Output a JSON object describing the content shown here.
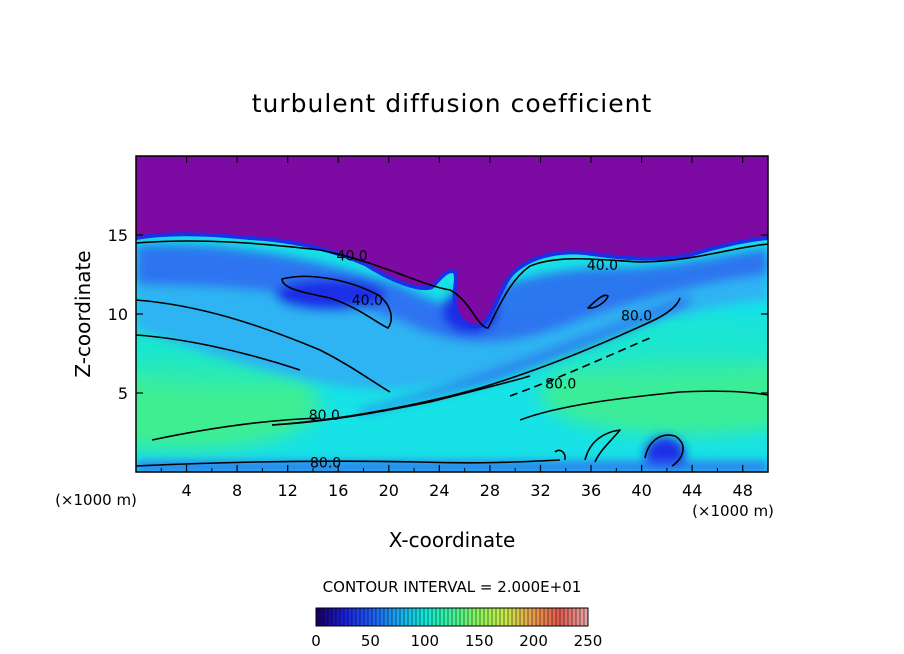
{
  "chart_data": {
    "type": "heatmap",
    "title": "turbulent diffusion coefficient",
    "xlabel": "X-coordinate",
    "ylabel": "Z-coordinate",
    "x_unit": "(×1000 m)",
    "z_unit": "(×1000 m)",
    "xlim": [
      0,
      50
    ],
    "ylim": [
      0,
      20
    ],
    "x_ticks": [
      4,
      8,
      12,
      16,
      20,
      24,
      28,
      32,
      36,
      40,
      44,
      48
    ],
    "y_ticks": [
      5,
      10,
      15
    ],
    "contour_interval_text": "CONTOUR INTERVAL = 2.000E+01",
    "contour_interval": 20,
    "contour_labels": [
      {
        "text": "40.0",
        "x": 17.1,
        "z": 13.7
      },
      {
        "text": "40.0",
        "x": 18.3,
        "z": 10.9
      },
      {
        "text": "40.0",
        "x": 36.9,
        "z": 13.1
      },
      {
        "text": "80.0",
        "x": 39.6,
        "z": 9.9
      },
      {
        "text": "80.0",
        "x": 33.6,
        "z": 5.6
      },
      {
        "text": "80.0",
        "x": 14.9,
        "z": 3.6
      },
      {
        "text": "80.0",
        "x": 15.0,
        "z": 0.6
      }
    ],
    "colorbar": {
      "min": 0,
      "max": 250,
      "tick_labels": [
        "0",
        "50",
        "100",
        "150",
        "200",
        "250"
      ],
      "colors": [
        "#1a0066",
        "#1b1fd9",
        "#1e5cf5",
        "#1aa8f2",
        "#11e8d8",
        "#3ff29a",
        "#8af55e",
        "#c8ea4a",
        "#e8a04a",
        "#e05a4e",
        "#e8a0a0"
      ]
    },
    "field_colors": {
      "top": "#7c0aa3",
      "deep_blue": "#1e2ee6",
      "blue": "#2e6cf0",
      "sky": "#2fb4f2",
      "cyan": "#17e2e6",
      "teal": "#1ee8c4",
      "green": "#44f082"
    }
  }
}
